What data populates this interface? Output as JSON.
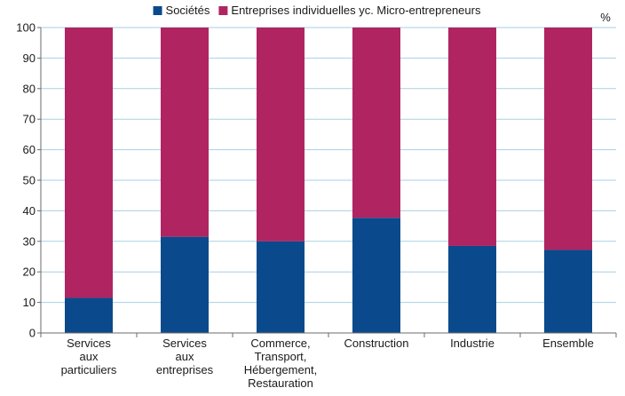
{
  "chart_data": {
    "type": "bar",
    "stacked": true,
    "categories": [
      [
        "Services",
        "aux",
        "particuliers"
      ],
      [
        "Services",
        "aux",
        "entreprises"
      ],
      [
        "Commerce,",
        "Transport,",
        "Hébergement,",
        "Restauration"
      ],
      [
        "Construction"
      ],
      [
        "Industrie"
      ],
      [
        "Ensemble"
      ]
    ],
    "series": [
      {
        "name": "Sociétés",
        "color": "#0a4a8c",
        "values": [
          11.5,
          31.5,
          30,
          37.7,
          28.5,
          27.2
        ]
      },
      {
        "name": "Entreprises individuelles yc. Micro-entrepreneurs",
        "color": "#b02462",
        "values": [
          88.5,
          68.5,
          70,
          62.3,
          71.5,
          72.8
        ]
      }
    ],
    "unit": "%",
    "ylim": [
      0,
      100
    ],
    "yticks": [
      0,
      10,
      20,
      30,
      40,
      50,
      60,
      70,
      80,
      90,
      100
    ],
    "grid": true,
    "legend_position": "top"
  }
}
